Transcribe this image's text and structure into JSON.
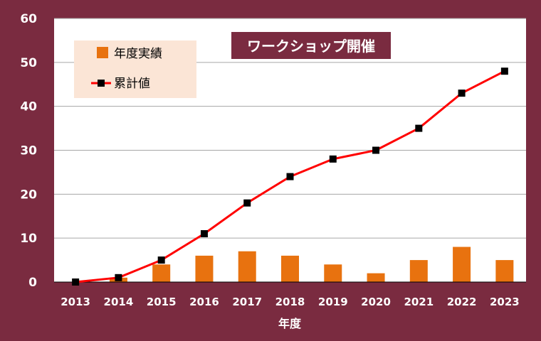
{
  "colors": {
    "frame": "#7a2b40",
    "plot_background": "#ffffff",
    "bar": "#e8720f",
    "line": "#ff0000",
    "marker": "#000000",
    "legend_background": "#fbe5d6"
  },
  "chart_data": {
    "type": "bar",
    "title": "ワークショップ開催",
    "xlabel": "年度",
    "ylabel": "",
    "categories": [
      "2013",
      "2014",
      "2015",
      "2016",
      "2017",
      "2018",
      "2019",
      "2020",
      "2021",
      "2022",
      "2023"
    ],
    "ylim": [
      0,
      60
    ],
    "yticks": [
      "0",
      "10",
      "20",
      "30",
      "40",
      "50",
      "60"
    ],
    "grid": true,
    "legend_position": "top-left",
    "series": [
      {
        "name": "年度実績",
        "type": "bar",
        "values": [
          0,
          1,
          4,
          6,
          7,
          6,
          4,
          2,
          5,
          8,
          5
        ]
      },
      {
        "name": "累計値",
        "type": "line",
        "marker": "square",
        "values": [
          0,
          1,
          5,
          11,
          18,
          24,
          28,
          30,
          35,
          43,
          48
        ]
      }
    ]
  }
}
